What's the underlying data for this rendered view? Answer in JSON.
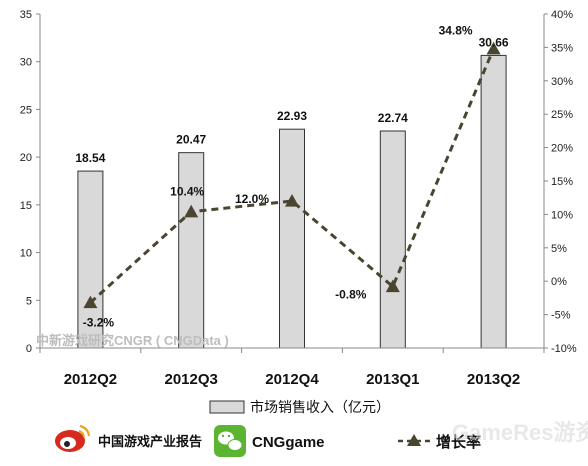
{
  "chart_data": {
    "type": "bar",
    "categories": [
      "2012Q2",
      "2012Q3",
      "2012Q4",
      "2013Q1",
      "2013Q2"
    ],
    "series": [
      {
        "name": "市场销售收入（亿元）",
        "type": "bar",
        "axis": "left",
        "color": "#d9d9d9",
        "values": [
          18.54,
          20.47,
          22.93,
          22.74,
          30.66
        ],
        "labels": [
          "18.54",
          "20.47",
          "22.93",
          "22.74",
          "30.66"
        ]
      },
      {
        "name": "增长率",
        "type": "line",
        "axis": "right",
        "color": "#4a4530",
        "values": [
          -3.2,
          10.4,
          12.0,
          -0.8,
          34.8
        ],
        "labels": [
          "-3.2%",
          "10.4%",
          "12.0%",
          "-0.8%",
          "34.8%"
        ]
      }
    ],
    "y_left": {
      "min": 0,
      "max": 35,
      "ticks": [
        "0",
        "5",
        "10",
        "15",
        "20",
        "25",
        "30",
        "35"
      ]
    },
    "y_right": {
      "min": -10,
      "max": 40,
      "ticks": [
        "-10%",
        "-5%",
        "0%",
        "5%",
        "10%",
        "15%",
        "20%",
        "25%",
        "30%",
        "35%",
        "40%"
      ]
    },
    "grid": false,
    "legend": "bottom"
  },
  "watermark": "中新游戏研究CNGR ( CNGData )",
  "footer": {
    "weibo_label": "中国游戏产业报告",
    "wechat_label": "CNGgame",
    "site_watermark": "GameRes游资网"
  },
  "colors": {
    "bar": "#d9d9d9",
    "bar_stroke": "#333333",
    "line": "#4a4530",
    "weibo_red": "#d52b1e",
    "wechat_green": "#5cb531"
  }
}
